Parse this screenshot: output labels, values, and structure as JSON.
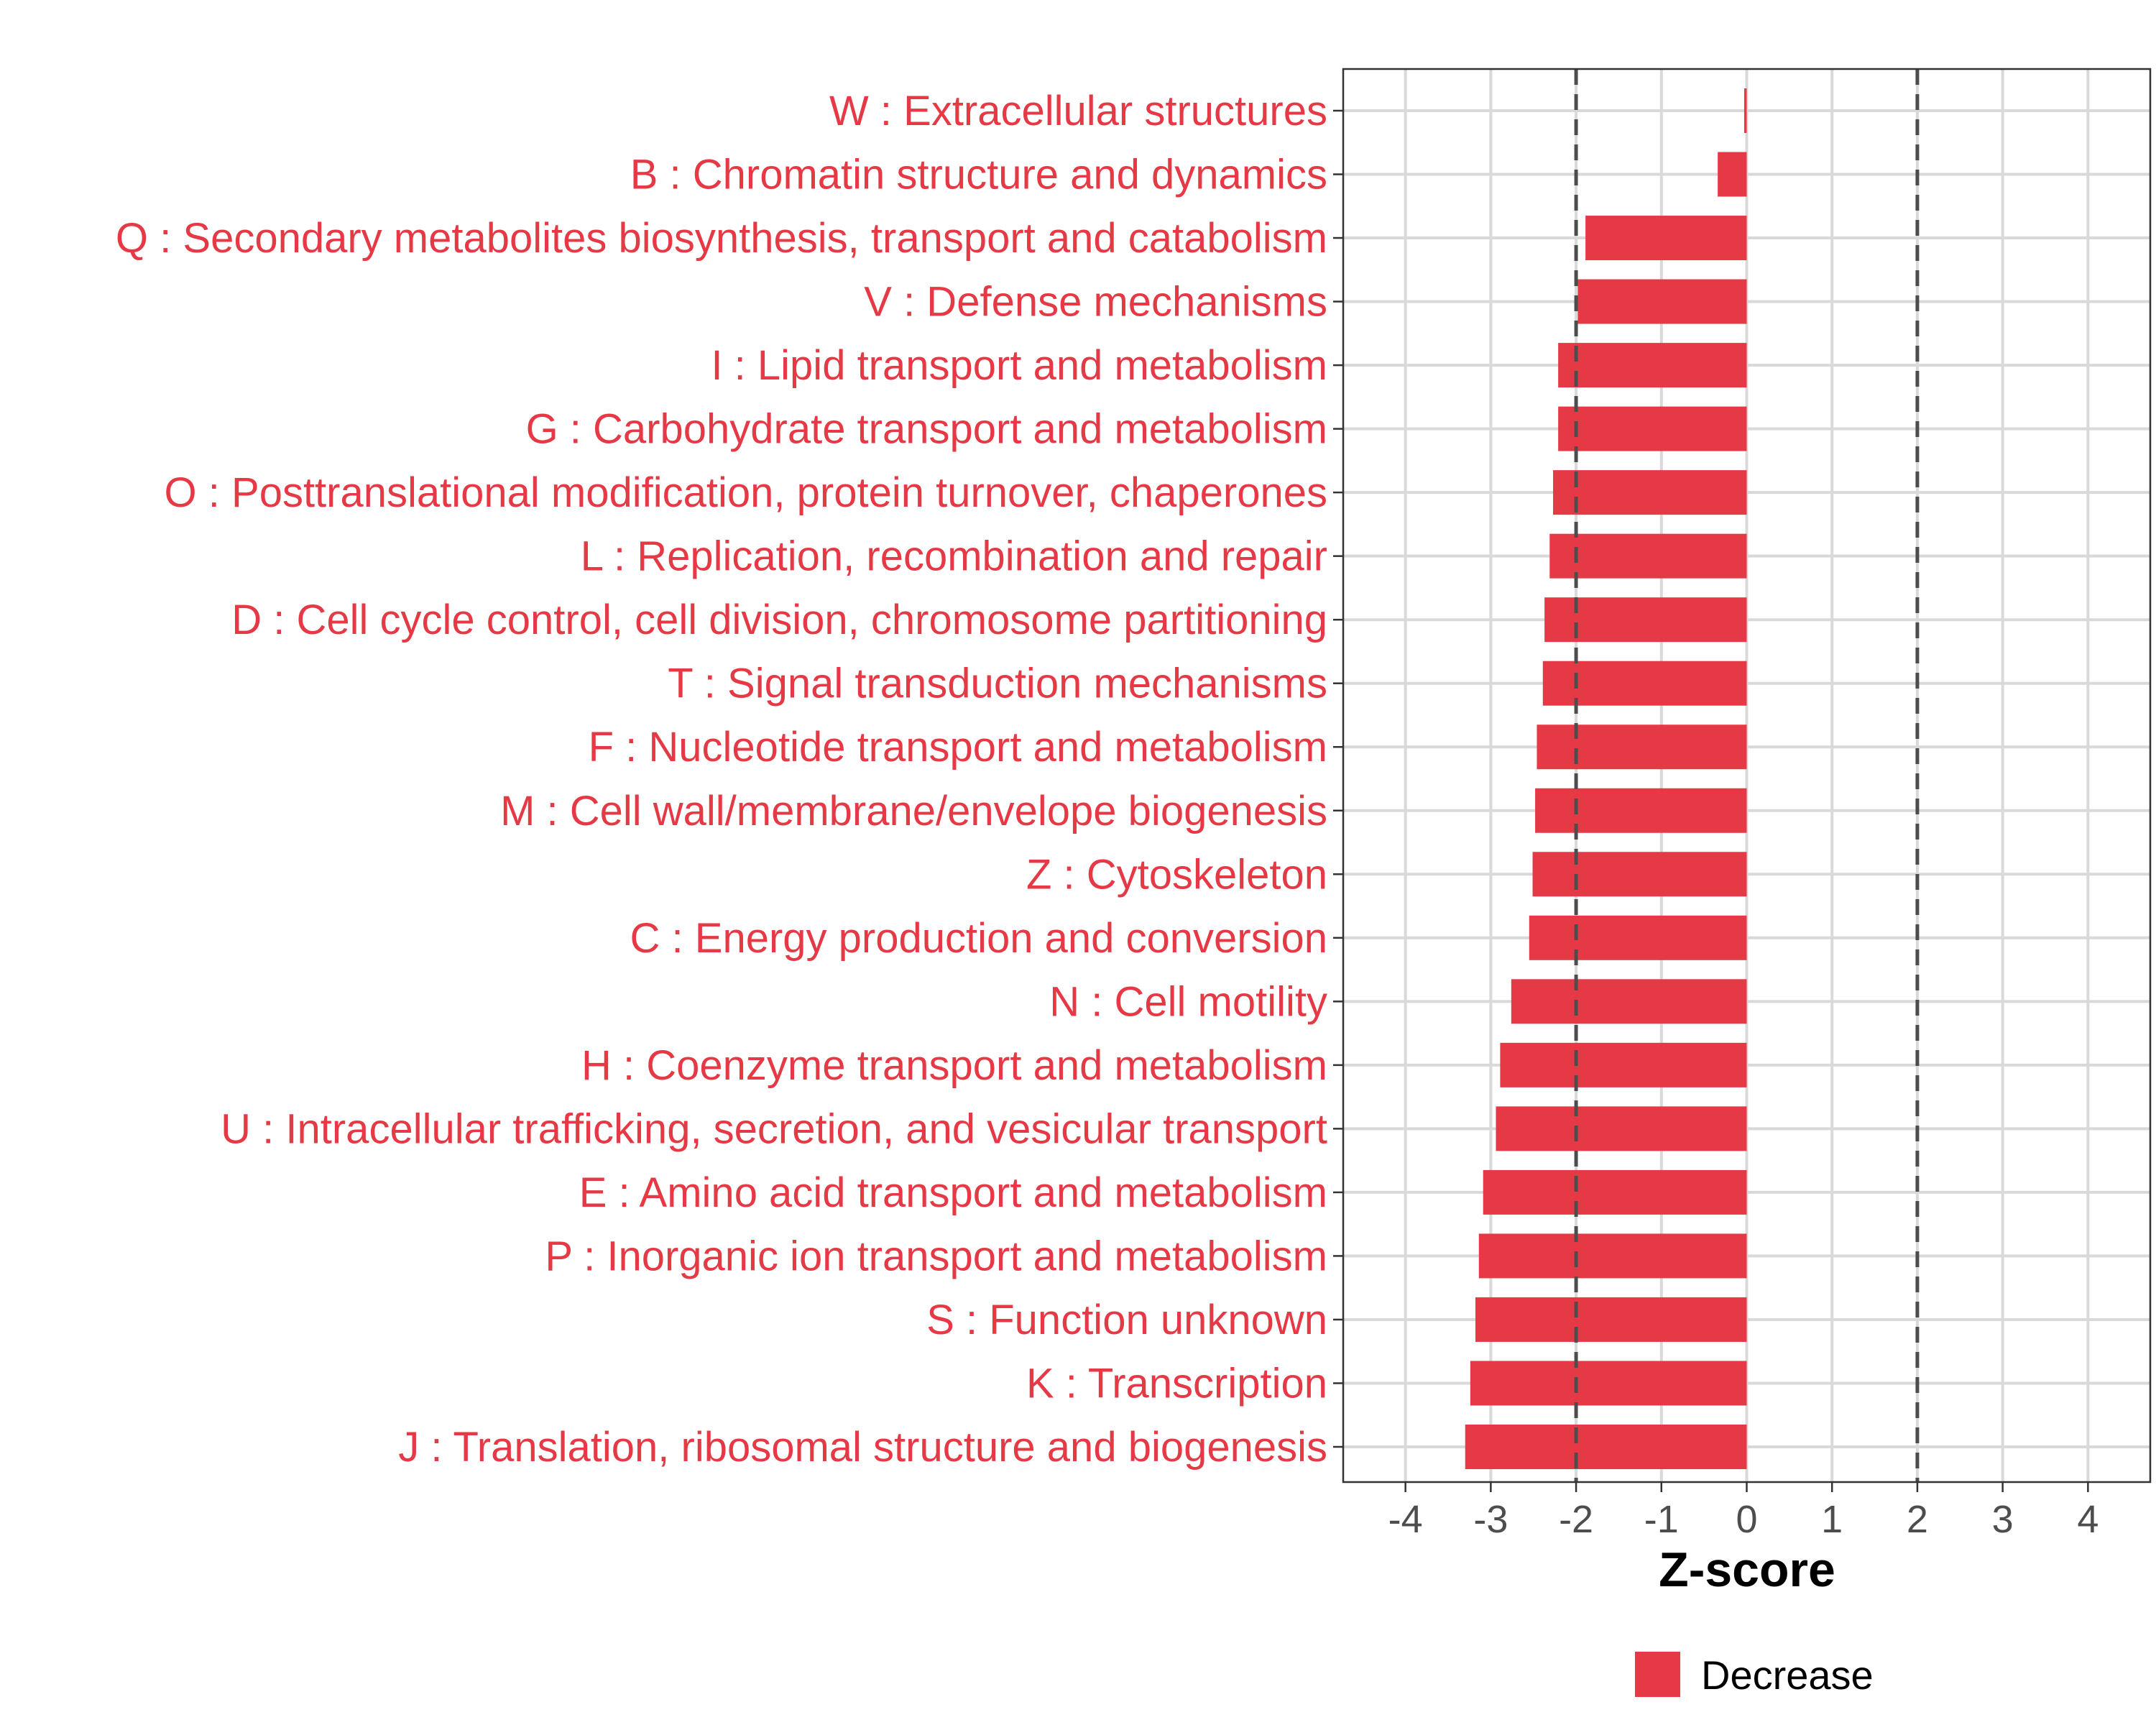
{
  "chart_data": {
    "type": "bar",
    "orientation": "horizontal",
    "title": "",
    "xlabel": "Z-score",
    "ylabel": "",
    "xlim": [
      -4.73,
      4.73
    ],
    "xticks": [
      -4,
      -3,
      -2,
      -1,
      0,
      1,
      2,
      3,
      4
    ],
    "xtick_labels": [
      "-4",
      "-3",
      "-2",
      "-1",
      "0",
      "1",
      "2",
      "3",
      "4"
    ],
    "reference_lines": [
      -2,
      2
    ],
    "grid": true,
    "categories": [
      "W : Extracellular structures",
      "B : Chromatin structure and dynamics",
      "Q : Secondary metabolites biosynthesis, transport and catabolism",
      "V : Defense mechanisms",
      "I : Lipid transport and metabolism",
      "G : Carbohydrate transport and metabolism",
      "O : Posttranslational modification, protein turnover, chaperones",
      "L : Replication, recombination and repair",
      "D : Cell cycle control, cell division, chromosome partitioning",
      "T : Signal transduction mechanisms",
      "F : Nucleotide transport and metabolism",
      "M : Cell wall/membrane/envelope biogenesis",
      "Z : Cytoskeleton",
      "C : Energy production and conversion",
      "N : Cell motility",
      "H : Coenzyme transport and metabolism",
      "U : Intracellular trafficking, secretion, and vesicular transport",
      "E : Amino acid transport and metabolism",
      "P : Inorganic ion transport and metabolism",
      "S : Function unknown",
      "K : Transcription",
      "J : Translation, ribosomal structure and biogenesis"
    ],
    "values": [
      -0.03,
      -0.34,
      -1.89,
      -1.98,
      -2.21,
      -2.21,
      -2.27,
      -2.31,
      -2.37,
      -2.39,
      -2.46,
      -2.48,
      -2.51,
      -2.55,
      -2.76,
      -2.89,
      -2.94,
      -3.09,
      -3.14,
      -3.18,
      -3.24,
      -3.3
    ],
    "legend": {
      "position": "bottom",
      "entries": [
        {
          "label": "Decrease",
          "color": "#E63946"
        }
      ]
    },
    "colors": {
      "bar": "#E63946",
      "label": "#E63946",
      "grid": "#d9d9d9",
      "refline": "#4d4d4d",
      "tick": "#4d4d4d"
    }
  }
}
